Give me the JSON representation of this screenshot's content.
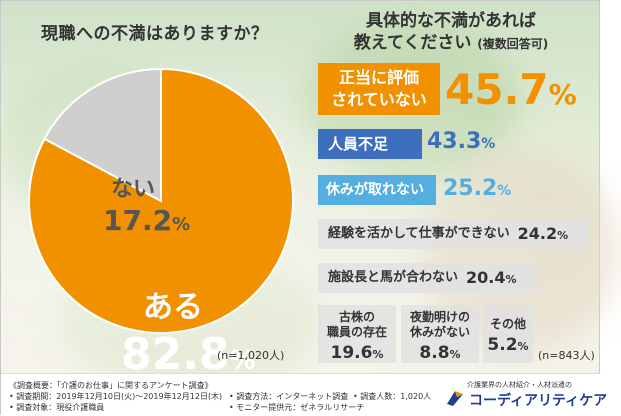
{
  "questions": {
    "left": "現職への不満はありますか？",
    "right_line1": "具体的な不満があれば",
    "right_line2": "教えてください",
    "right_note": "(複数回答可)"
  },
  "chart_data": [
    {
      "type": "pie",
      "title": "現職への不満はありますか？",
      "slices": [
        {
          "label": "ある",
          "value": 82.8,
          "color": "#f29100"
        },
        {
          "label": "ない",
          "value": 17.2,
          "color": "#cfcfcf"
        }
      ],
      "n": "(n=1,020人)"
    },
    {
      "type": "bar",
      "title": "具体的な不満があれば教えてください (複数回答可)",
      "categories": [
        "正当に評価されていない",
        "人員不足",
        "休みが取れない",
        "経験を活かして仕事ができない",
        "施設長と馬が合わない",
        "古株の職員の存在",
        "夜勤明けの休みがない",
        "その他"
      ],
      "values": [
        45.7,
        43.3,
        25.2,
        24.2,
        20.4,
        19.6,
        8.8,
        5.2
      ],
      "n": "(n=843人)"
    }
  ],
  "pie": {
    "aru_label": "ある",
    "aru_int": "82.8",
    "nai_label": "ない",
    "nai_int": "17.2",
    "pct": "%",
    "n": "(n=1,020人)"
  },
  "bars": {
    "b1_line1": "正当に評価",
    "b1_line2": "されていない",
    "b1_val": "45.7",
    "b2_label": "人員不足",
    "b2_val": "43.3",
    "b3_label": "休みが取れない",
    "b3_val": "25.2",
    "b4_label": "経験を活かして仕事ができない",
    "b4_val": "24.2",
    "b5_label": "施設長と馬が合わない",
    "b5_val": "20.4",
    "s1_line1": "古株の",
    "s1_line2": "職員の存在",
    "s1_val": "19.6",
    "s2_line1": "夜勤明けの",
    "s2_line2": "休みがない",
    "s2_val": "8.8",
    "s3_label": "その他",
    "s3_val": "5.2",
    "pct": "%",
    "n": "(n=843人)"
  },
  "footer": {
    "survey_title": "《調査概要：「介護のお仕事」に関するアンケート調査》",
    "period": "• 調査期間：2019年12月10日(火)〜2019年12月12日(木)",
    "target": "• 調査対象：現役介護職員",
    "method": "• 調査方法：インターネット調査",
    "monitor": "• モニター提供元：ゼネラルリサーチ",
    "count": "• 調査人数：1,020人",
    "logo_sub": "介護業界の人材紹介・人材派遣の",
    "logo_name": "コーディアリティケア"
  },
  "colors": {
    "orange": "#f29100",
    "blue": "#3d6fbd",
    "light_blue": "#55aee0",
    "gray": "#cfcfcf",
    "logo": "#1f3d8f"
  }
}
